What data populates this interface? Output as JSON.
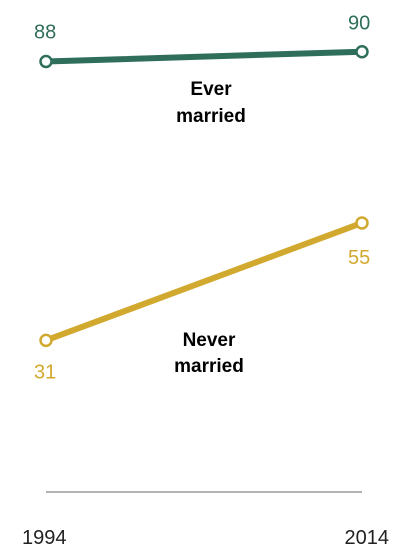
{
  "chart_data": {
    "type": "line",
    "x": [
      "1994",
      "2014"
    ],
    "series": [
      {
        "name": "Ever married",
        "name_lines": [
          "Ever",
          "married"
        ],
        "values": [
          88,
          90
        ],
        "color": "#2f6e5a"
      },
      {
        "name": "Never married",
        "name_lines": [
          "Never",
          "married"
        ],
        "values": [
          31,
          55
        ],
        "color": "#d2a92f"
      }
    ],
    "title": "",
    "xlabel": "",
    "ylabel": "",
    "grid": false,
    "legend": "inline labels"
  }
}
